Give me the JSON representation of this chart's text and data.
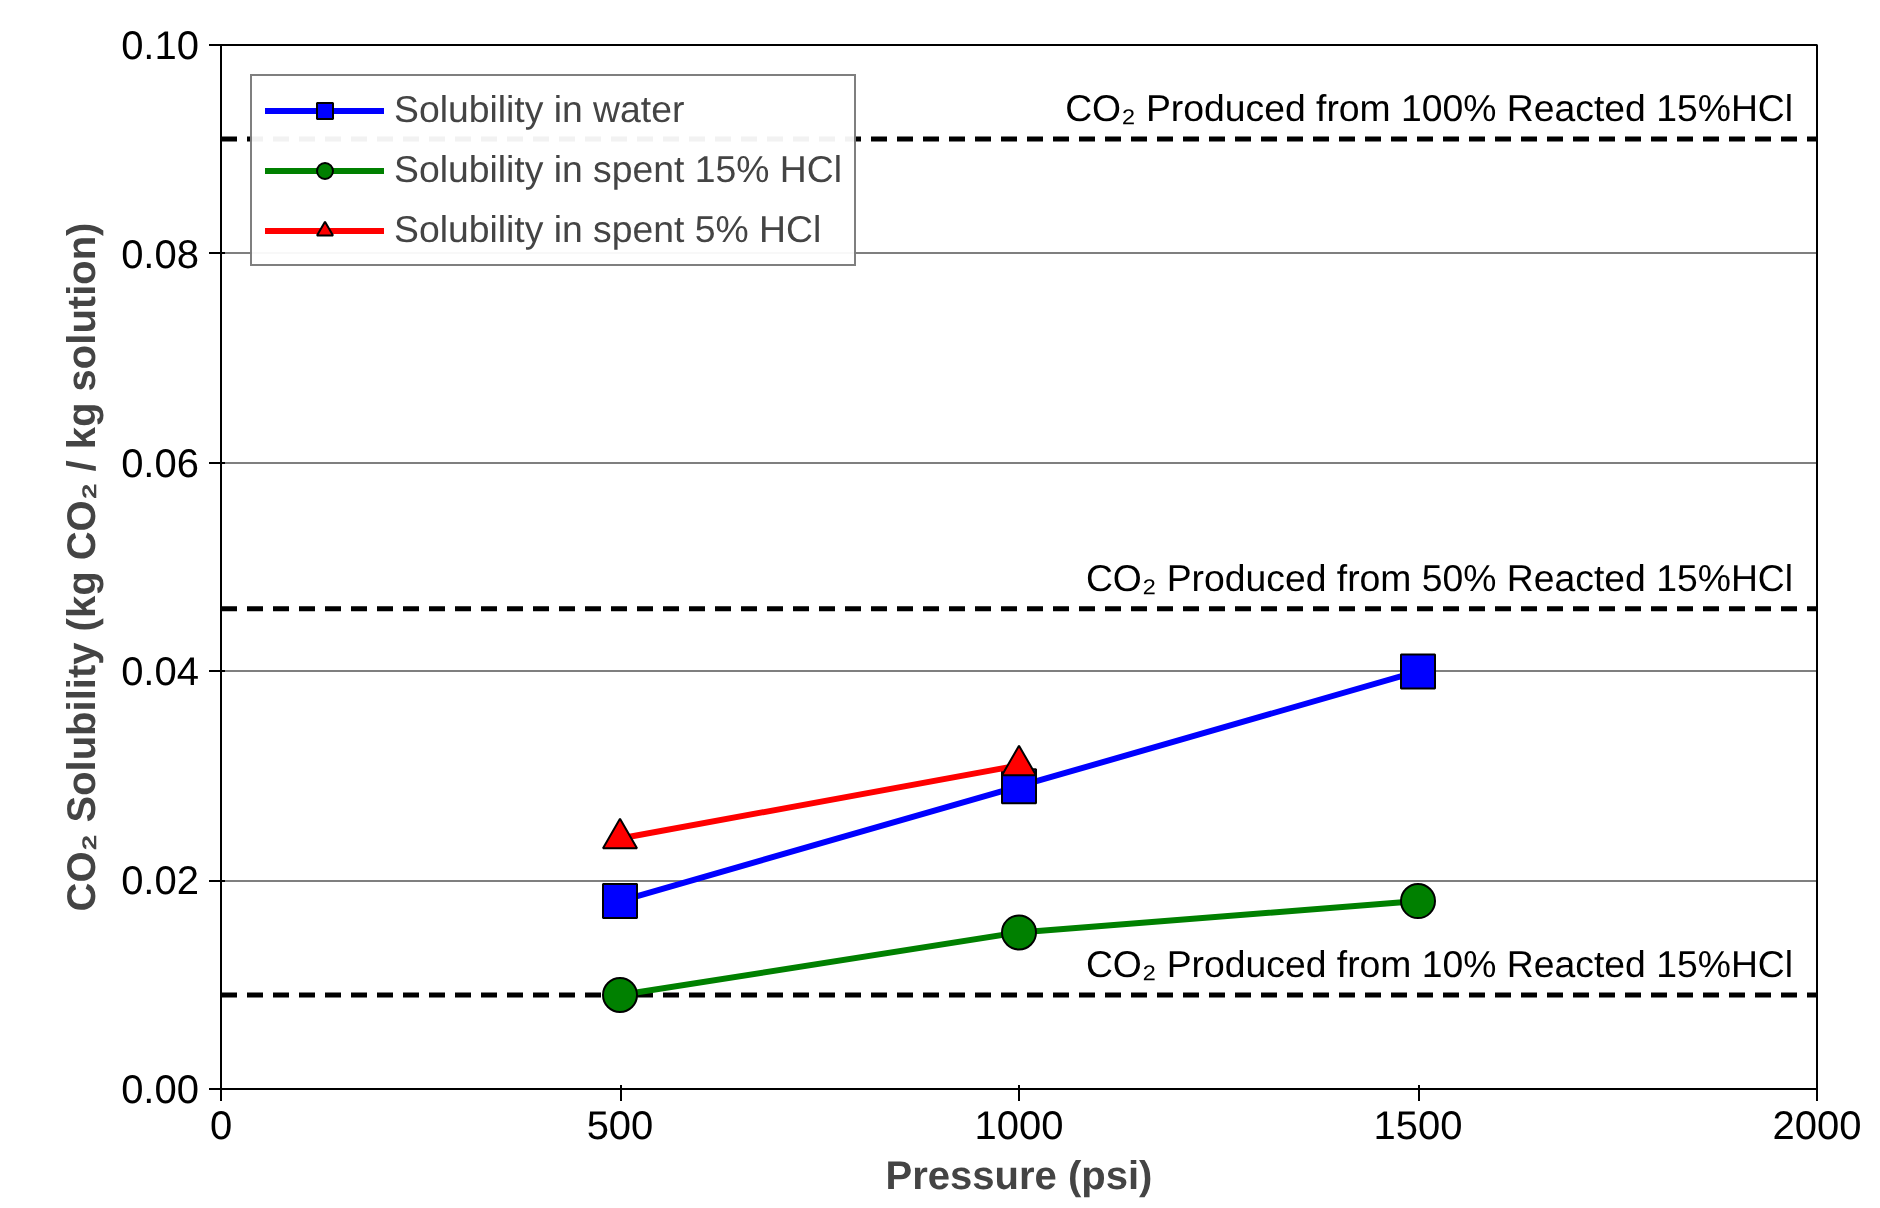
{
  "chart_data": {
    "type": "line",
    "xlabel": "Pressure (psi)",
    "ylabel": "CO₂ Solubility (kg CO₂ / kg solution)",
    "x": [
      500,
      1000,
      1500
    ],
    "series": [
      {
        "name": "Solubility in water",
        "color": "#0000ff",
        "marker": "square",
        "values": [
          0.018,
          0.029,
          0.04
        ]
      },
      {
        "name": "Solubility in spent 15% HCl",
        "color": "#008000",
        "marker": "circle",
        "values": [
          0.009,
          0.015,
          0.018
        ]
      },
      {
        "name": "Solubility in spent 5% HCl",
        "color": "#ff0000",
        "marker": "triangle",
        "values": [
          0.024,
          0.031,
          null
        ]
      }
    ],
    "xlim": [
      0,
      2000
    ],
    "xticks": [
      0,
      500,
      1000,
      1500,
      2000
    ],
    "ylim": [
      0,
      0.1
    ],
    "yticks": [
      {
        "value": 0,
        "label": "0.00"
      },
      {
        "value": 0.02,
        "label": "0.02"
      },
      {
        "value": 0.04,
        "label": "0.04"
      },
      {
        "value": 0.06,
        "label": "0.06"
      },
      {
        "value": 0.08,
        "label": "0.08"
      },
      {
        "value": 0.1,
        "label": "0.10"
      }
    ],
    "ref_lines": [
      {
        "axis": "y",
        "value": 0.091,
        "label": "CO₂ Produced from 100% Reacted 15%HCl",
        "color": "#000000",
        "line_style": "dashed"
      },
      {
        "axis": "y",
        "value": 0.046,
        "label": "CO₂ Produced from 50% Reacted 15%HCl",
        "color": "#000000",
        "line_style": "dashed"
      },
      {
        "axis": "y",
        "value": 0.009,
        "label": "CO₂ Produced from 10% Reacted 15%HCl",
        "color": "#000000",
        "line_style": "dashed"
      }
    ],
    "grid": "y",
    "legend": "top left",
    "line_style": "solid"
  }
}
